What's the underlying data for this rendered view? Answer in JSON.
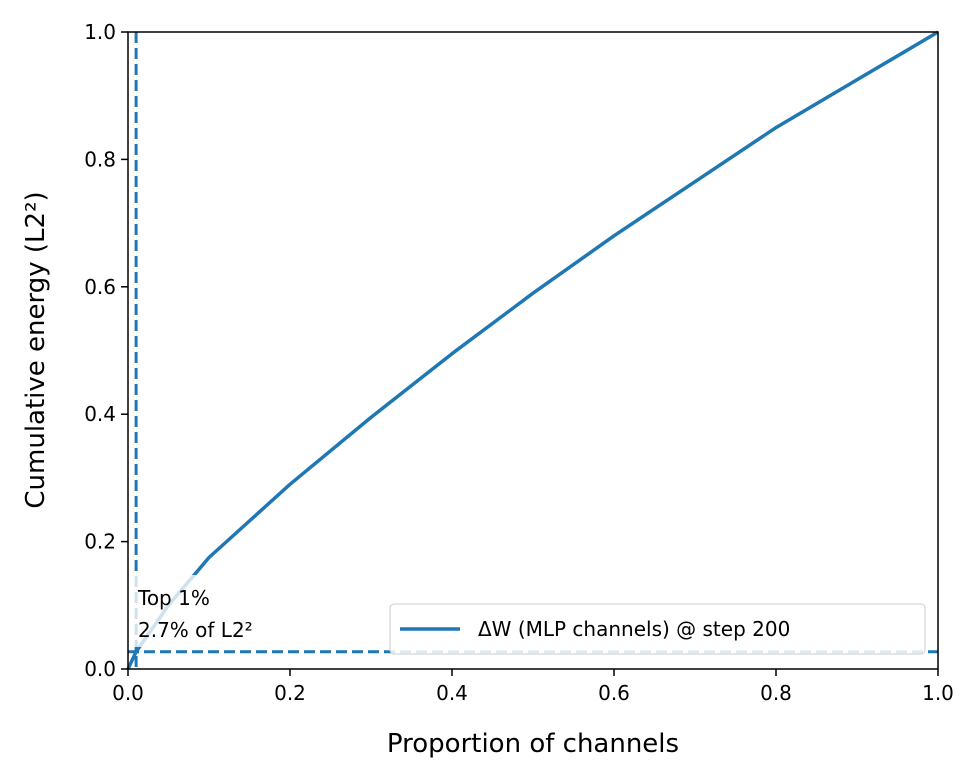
{
  "chart_data": {
    "type": "line",
    "title": "",
    "xlabel": "Proportion of channels",
    "ylabel": "Cumulative energy (L2²)",
    "xlim": [
      0,
      1
    ],
    "ylim": [
      0,
      1
    ],
    "xticks": [
      "0.0",
      "0.2",
      "0.4",
      "0.6",
      "0.8",
      "1.0"
    ],
    "yticks": [
      "0.0",
      "0.2",
      "0.4",
      "0.6",
      "0.8",
      "1.0"
    ],
    "grid": false,
    "legend_position": "bottom-right",
    "series": [
      {
        "name": "ΔW (MLP channels) @ step 200",
        "color": "#1f77b4",
        "x": [
          0,
          0.01,
          0.05,
          0.1,
          0.2,
          0.3,
          0.4,
          0.5,
          0.6,
          0.7,
          0.8,
          0.9,
          1.0
        ],
        "y": [
          0,
          0.027,
          0.1,
          0.175,
          0.29,
          0.395,
          0.495,
          0.59,
          0.68,
          0.765,
          0.85,
          0.925,
          1.0
        ]
      }
    ],
    "reference_lines": {
      "vertical_x": 0.01,
      "horizontal_y": 0.027,
      "color": "#1f77b4",
      "style": "dashed"
    },
    "annotation": {
      "line1": "Top 1%",
      "line2": "2.7% of L2²"
    }
  }
}
